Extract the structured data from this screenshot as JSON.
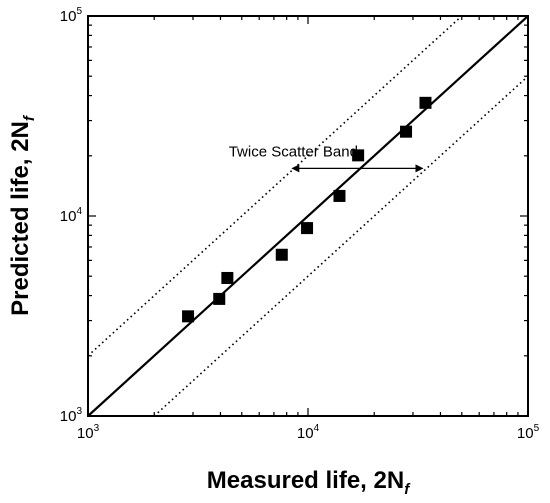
{
  "chart_data": {
    "type": "scatter",
    "xscale": "log",
    "yscale": "log",
    "xlim": [
      1000,
      100000
    ],
    "ylim": [
      1000,
      100000
    ],
    "xlabel_main": "Measured life, 2N",
    "xlabel_sub": "f",
    "ylabel_main": "Predicted life, 2N",
    "ylabel_sub": "f",
    "x_ticks": [
      {
        "value": 1000,
        "base": "10",
        "exp": "3"
      },
      {
        "value": 10000,
        "base": "10",
        "exp": "4"
      },
      {
        "value": 100000,
        "base": "10",
        "exp": "5"
      }
    ],
    "y_ticks": [
      {
        "value": 1000,
        "base": "10",
        "exp": "3"
      },
      {
        "value": 10000,
        "base": "10",
        "exp": "4"
      },
      {
        "value": 100000,
        "base": "10",
        "exp": "5"
      }
    ],
    "points": [
      {
        "x": 2850,
        "y": 3150
      },
      {
        "x": 3950,
        "y": 3850
      },
      {
        "x": 4300,
        "y": 4900
      },
      {
        "x": 7600,
        "y": 6400
      },
      {
        "x": 9900,
        "y": 8700
      },
      {
        "x": 13900,
        "y": 12600
      },
      {
        "x": 16900,
        "y": 20100
      },
      {
        "x": 27900,
        "y": 26400
      },
      {
        "x": 34200,
        "y": 36800
      }
    ],
    "reference_lines": [
      {
        "kind": "1:1",
        "factor": 1,
        "style": "solid"
      },
      {
        "kind": "upper scatter band",
        "factor": 2,
        "style": "dotted"
      },
      {
        "kind": "lower scatter band",
        "factor": 0.5,
        "style": "dotted"
      }
    ],
    "annotation": {
      "text": "Twice Scatter Band",
      "arrow_from_x": 8400,
      "arrow_to_x": 33500,
      "arrow_y": 17300
    },
    "grid": false,
    "legend": "none"
  }
}
